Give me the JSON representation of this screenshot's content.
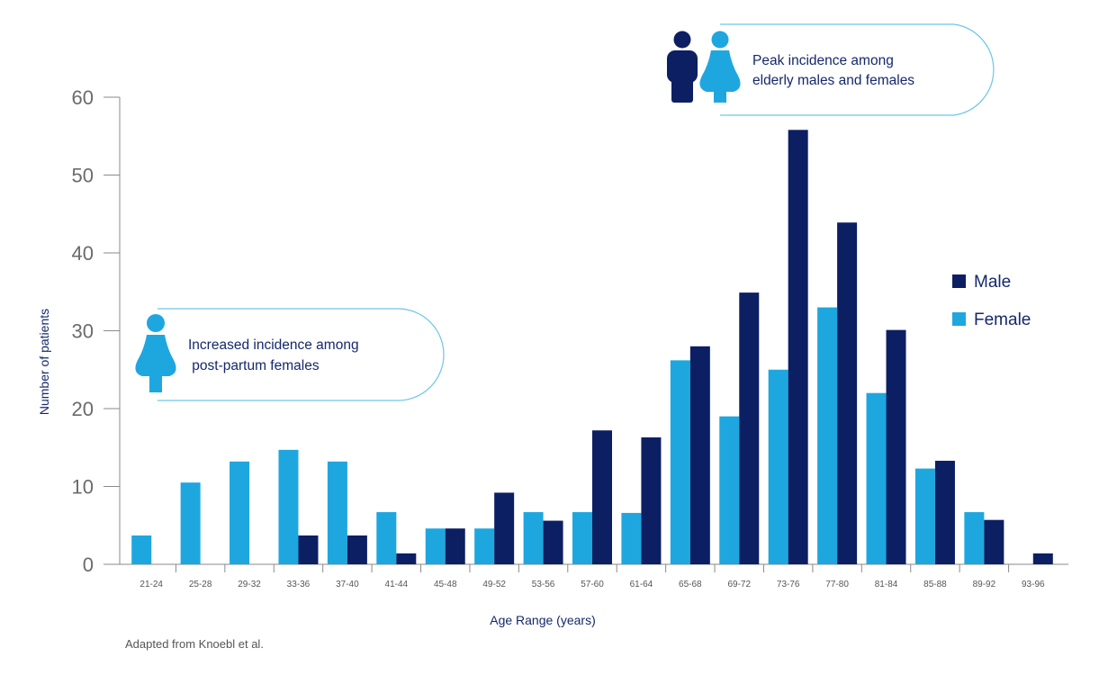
{
  "chart_data": {
    "type": "bar",
    "title": "",
    "xlabel": "Age Range (years)",
    "ylabel": "Number of patients",
    "ylim": [
      0,
      60
    ],
    "yticks": [
      0,
      10,
      20,
      30,
      40,
      50,
      60
    ],
    "grid": false,
    "legend_position": "right",
    "categories": [
      "21-24",
      "25-28",
      "29-32",
      "33-36",
      "37-40",
      "41-44",
      "45-48",
      "49-52",
      "53-56",
      "57-60",
      "61-64",
      "65-68",
      "69-72",
      "73-76",
      "77-80",
      "81-84",
      "85-88",
      "89-92",
      "93-96"
    ],
    "series": [
      {
        "name": "Female",
        "color": "#1ea7df",
        "values": [
          3.7,
          10.5,
          13.2,
          14.7,
          13.2,
          6.7,
          4.6,
          4.6,
          6.7,
          6.7,
          6.6,
          26.2,
          19.0,
          25.0,
          33.0,
          22.0,
          12.3,
          6.7,
          0
        ]
      },
      {
        "name": "Male",
        "color": "#0d1f63",
        "values": [
          0,
          0,
          0,
          3.7,
          3.7,
          1.4,
          4.6,
          9.2,
          5.6,
          17.2,
          16.3,
          28.0,
          34.9,
          55.8,
          43.9,
          30.1,
          13.3,
          5.7,
          1.4
        ]
      }
    ],
    "annotations": [
      {
        "text_lines": [
          "Increased incidence among",
          " post-partum females"
        ],
        "icon": "female-icon"
      },
      {
        "text_lines": [
          "Peak incidence among",
          "elderly males and females"
        ],
        "icon": "male-and-female-icon"
      }
    ],
    "source": "Adapted from Knoebl et al."
  }
}
